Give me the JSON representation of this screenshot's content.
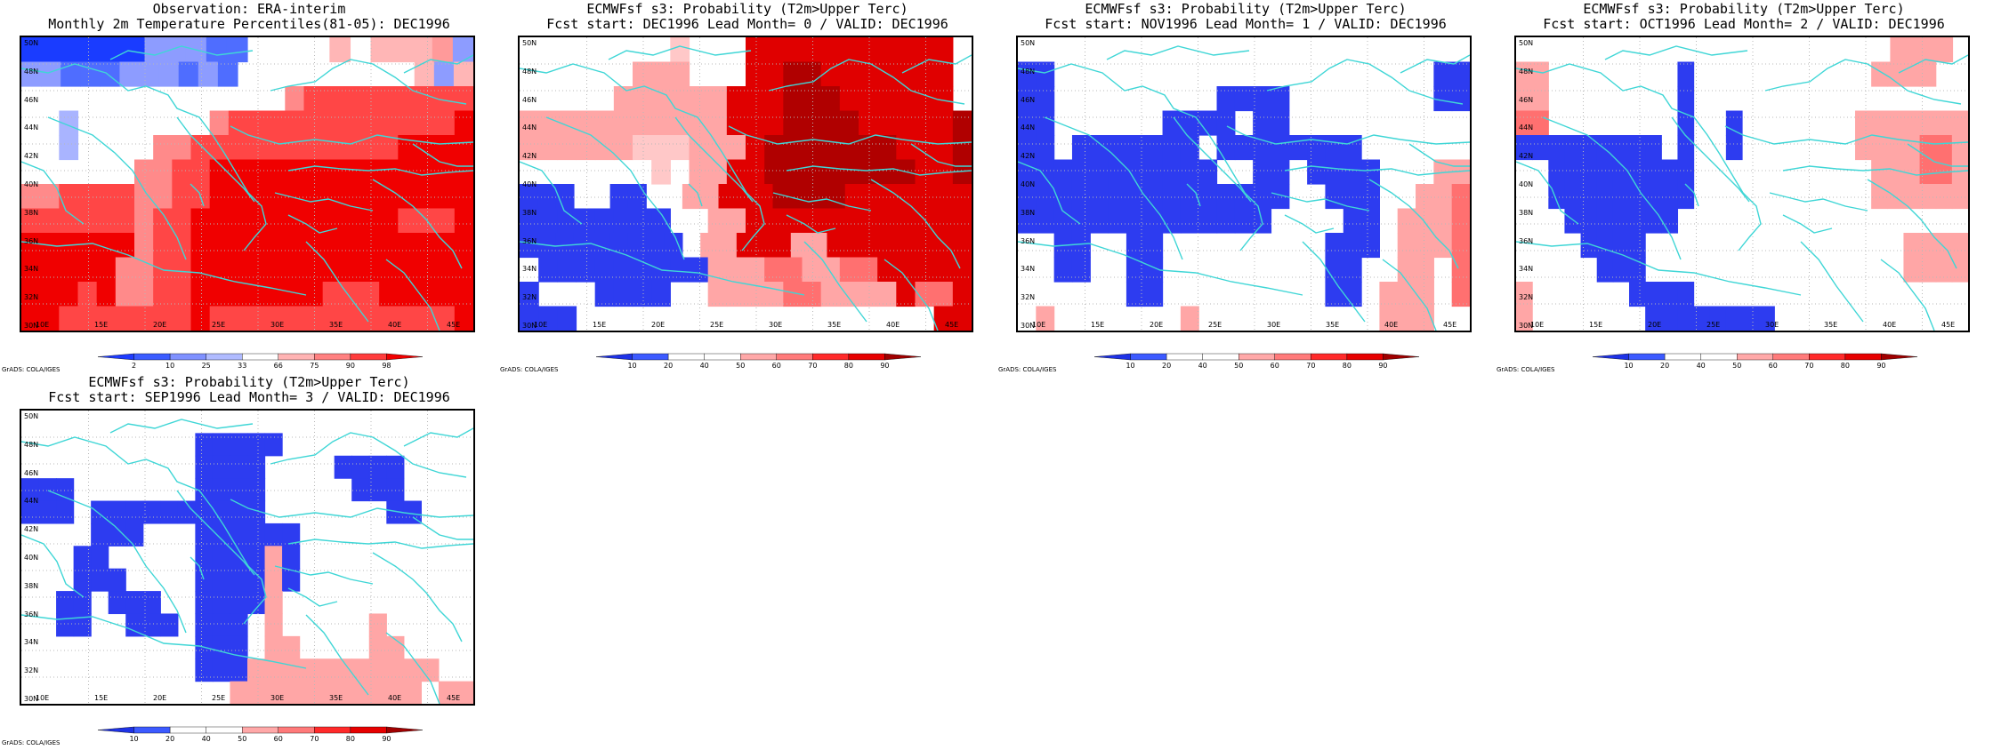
{
  "colors": {
    "coast": "#3fd6d6",
    "grid": "#b8b8b8",
    "frame": "#000000"
  },
  "panels": [
    {
      "id": "obs",
      "title1": "Observation: ERA-interim",
      "title2": "Monthly 2m Temperature Percentiles(81-05): DEC1996",
      "legend": {
        "labels": [
          "2",
          "10",
          "25",
          "33",
          "66",
          "75",
          "90",
          "98"
        ],
        "colors": [
          "#1e3cff",
          "#3b5cff",
          "#7f91ff",
          "#b0bbff",
          "#ffffff",
          "#ffb3b3",
          "#ff8080",
          "#ff3c3c",
          "#f00000"
        ]
      },
      "grid": [
        "AAAAAACCCBBWWWWEWEEEFC",
        "CCBBBCCCBCBWWWWWWWWWECE",
        "WWWWWWWWWWWWWWGHHHHHHHHH",
        "WWDWWWWWWWGHHHHHHHHHHHHI",
        "WWDWWWWGGHHHHHHHHHHHIIII",
        "WWWWWWGGHHIIIIIIIIIIIIII",
        "GGHHHHGGHHIIIIIIIIIIIIII",
        "HHHHHHGHHIIIIIIIIIIIHHHI",
        "IIIIIIGHHIIIIIIIIIIIIIII",
        "IIIIIGGHHIIIIIIIIIIIIIII",
        "IIIHIGGHHIIIIIIIHHHIIIII",
        "IIHHHHHHHIHHHHHHHHHHHHHI"
      ]
    },
    {
      "id": "lead0",
      "title1": "ECMWFsf s3: Probability (T2m>Upper Terc)",
      "title2": "Fcst start: DEC1996  Lead Month= 0 / VALID: DEC1996",
      "legend": {
        "labels": [
          "10",
          "20",
          "40",
          "50",
          "60",
          "70",
          "80",
          "90"
        ],
        "colors": [
          "#1e32e6",
          "#3c5aff",
          "#ffffff",
          "#ffffff",
          "#ffa8a8",
          "#ff7a7a",
          "#ff2a2a",
          "#e60000",
          "#a00000"
        ]
      },
      "grid": [
        "WWWWWWWWFWWWIIIIIIIIIIIW",
        "WWWWWWGGGWWWIIJJIIIIIIIW",
        "WWWWWGGGGGGIIIJJJIIIIIIW",
        "GGGGGGGGGGGIIIJJJJIIIIIJ",
        "GGGGGGFFFGGGIJJJJJJJIIIJ",
        "WWWWWWWFWGGIIJJJJJJJJIIJ",
        "BBBWWBBWWGGIIIJJJJIIIIIII",
        "BBBBBBBBWWGGIIIIIIIIIIII",
        "BBBBBBBBBWGGIIIGGIIIIIIII",
        "WBBBBBBBBBGGGHHGGHHIIIII",
        "BWWWBBBBWWGGGGHHGGGGIHHI",
        "BBBWWWWWWWWWWWWWWWWWWWII"
      ]
    },
    {
      "id": "lead1",
      "title1": "ECMWFsf s3: Probability (T2m>Upper Terc)",
      "title2": "Fcst start: NOV1996  Lead Month= 1 / VALID: DEC1996",
      "legend": {
        "labels": [
          "10",
          "20",
          "40",
          "50",
          "60",
          "70",
          "80",
          "90"
        ],
        "colors": [
          "#1e32e6",
          "#3c5aff",
          "#ffffff",
          "#ffffff",
          "#ffa8a8",
          "#ff7a7a",
          "#ff2a2a",
          "#e60000",
          "#a00000"
        ]
      },
      "grid": [
        "WWWWWWWWWWWWWWWWWWWWWWWWW",
        "BBWWWWWWWWWWWWWWWWWWWWWBB",
        "BBWWWWWWWWWBBBBWWWWWWWWBB",
        "BBWWWWWWBBBBWBBWWWWWWWWWW",
        "BBWBBBBBBBWBBBBBBBBWWWWWW",
        "BBBBBBBBBBBWWBBWBBBBWWWGG",
        "BBBBBBBBBBBBBBBWWBBBWWGGH",
        "BBBBBBBBBBBBBBWWWWBBWGGGH",
        "WWBBWWBBWWWWWWWWWBBBWGGGH",
        "WWBBWWBBWWWWWWWWWBBWWGGWH",
        "WWWWWWBBWWWWWWWWWBBWGGGWH",
        "WGWWWWWWWGWWWWWWWWWWGGGWW"
      ]
    },
    {
      "id": "lead2",
      "title1": "ECMWFsf s3: Probability (T2m>Upper Terc)",
      "title2": "Fcst start: OCT1996  Lead Month= 2 / VALID: DEC1996",
      "legend": {
        "labels": [
          "10",
          "20",
          "40",
          "50",
          "60",
          "70",
          "80",
          "90"
        ],
        "colors": [
          "#1e32e6",
          "#3c5aff",
          "#ffffff",
          "#ffffff",
          "#ffa8a8",
          "#ff7a7a",
          "#ff2a2a",
          "#e60000",
          "#a00000"
        ]
      },
      "grid": [
        "WWWWWWWWWWWWWWWWWWWWWWWWGGGGW",
        "GGWWWWWWWWBWWWWWWWWWWWGGGGWW",
        "GGWWWWWWWWBWWWWWWWWWWWWWWWWW",
        "HHWWWWWWWWBWWBWWWWWWWGGGGGGG",
        "BBBBBBBBBWBWWBWWWWWWWGGGGHHG",
        "WWBBBBBBBBBWWWWWWWWWWWGGGHHG",
        "WWBBBBBBBBBWWWWWWWWWWWGGGGGG",
        "WWWBBBBBBBWWWWWWWWWWWWWWWWWW",
        "WWWWBBBBWWWWWWWWWWWWWWWWGGGG",
        "WWWWWBBBWWWWWWWWWWWWWWWWGGGG",
        "GWWWWWWBBBBWWWWWWWWWWWWWWWWW",
        "GWWWWWWWBBBBBBBBWWWWWWWWWWWW"
      ]
    },
    {
      "id": "lead3",
      "title1": "ECMWFsf s3: Probability (T2m>Upper Terc)",
      "title2": "Fcst start: SEP1996  Lead Month= 3 / VALID: DEC1996",
      "legend": {
        "labels": [
          "10",
          "20",
          "40",
          "50",
          "60",
          "70",
          "80",
          "90"
        ],
        "colors": [
          "#1e32e6",
          "#3c5aff",
          "#ffffff",
          "#ffffff",
          "#ffa8a8",
          "#ff7a7a",
          "#ff2a2a",
          "#e60000",
          "#a00000"
        ]
      },
      "grid": [
        "WWWWWWWWWWWWWWWWWWWWWWWWWWW",
        "WWWWWWWWWWBBBBBWWWWWWWWWWW",
        "WWWWWWWWWWBBBBWWWWBBBBWWWW",
        "BBBWWWWWWWBBBBWWWWWBBBWWWW",
        "BBBWBBBBBBBBBBWWWWWWWBBWWW",
        "WWWWBBBWWWBBBBBBWWWWWWWWWW",
        "WWWBBWWWWWBBBBGBWWWWWWWWWW",
        "WWWBBBWWWWBBBBGBWWWWWWWWWW",
        "WWBBWBBBWWBBBBGWWWWWWWWWWW",
        "WWBBWWBBBWBBBWGWWWWWGWWWWW",
        "WWWWWWWWWWBBBWGGWWWWGGWWWW",
        "WWWWWWWWWWBBBGGGGGGGGGGGWW",
        "WWWWWWWWWWWWGGGGGGGGGGGWGG"
      ]
    }
  ],
  "lat_labels": [
    "50N",
    "48N",
    "46N",
    "44N",
    "42N",
    "40N",
    "38N",
    "36N",
    "34N",
    "32N",
    "30N"
  ],
  "lon_labels": [
    "10E",
    "15E",
    "20E",
    "25E",
    "30E",
    "35E",
    "40E",
    "45E"
  ],
  "credit": "GrADS: COLA/IGES"
}
